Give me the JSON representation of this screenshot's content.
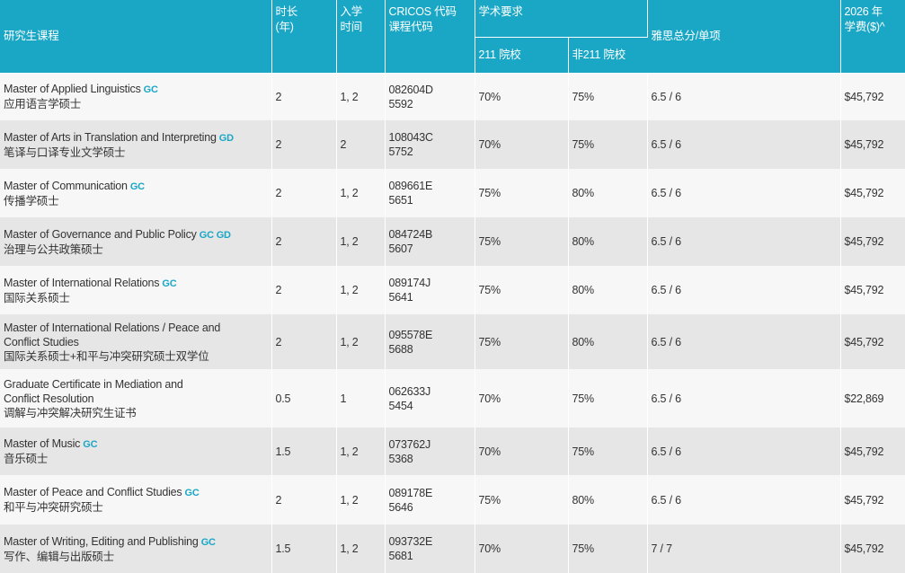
{
  "header": {
    "course": "研究生课程",
    "duration": [
      "时长",
      "(年)"
    ],
    "intake": [
      "入学",
      "时间"
    ],
    "cricos": [
      "CRICOS 代码",
      "课程代码"
    ],
    "academic": "学术要求",
    "col211": "211 院校",
    "colnon211": "非211 院校",
    "ielts": "雅思总分/单项",
    "fee": [
      "2026 年",
      "学费($)^"
    ]
  },
  "rows": [
    {
      "en": "Master of Applied Linguistics",
      "tags": "GC",
      "cn": "应用语言学硕士",
      "duration": "2",
      "intake": "1, 2",
      "cricos": "082604D",
      "code": "5592",
      "r211": "70%",
      "rnon211": "75%",
      "ielts": "6.5 / 6",
      "fee": "$45,792"
    },
    {
      "en": "Master of Arts in Translation and Interpreting",
      "tags": "GD",
      "cn": "笔译与口译专业文学硕士",
      "duration": "2",
      "intake": "2",
      "cricos": "108043C",
      "code": "5752",
      "r211": "70%",
      "rnon211": "75%",
      "ielts": "6.5 / 6",
      "fee": "$45,792"
    },
    {
      "en": "Master of Communication",
      "tags": "GC",
      "cn": "传播学硕士",
      "duration": "2",
      "intake": "1, 2",
      "cricos": "089661E",
      "code": "5651",
      "r211": "75%",
      "rnon211": "80%",
      "ielts": "6.5 / 6",
      "fee": "$45,792"
    },
    {
      "en": "Master of Governance and Public Policy",
      "tags": "GC GD",
      "cn": "治理与公共政策硕士",
      "duration": "2",
      "intake": "1, 2",
      "cricos": "084724B",
      "code": "5607",
      "r211": "75%",
      "rnon211": "80%",
      "ielts": "6.5 / 6",
      "fee": "$45,792"
    },
    {
      "en": "Master of International Relations",
      "tags": "GC",
      "cn": "国际关系硕士",
      "duration": "2",
      "intake": "1, 2",
      "cricos": "089174J",
      "code": "5641",
      "r211": "75%",
      "rnon211": "80%",
      "ielts": "6.5 / 6",
      "fee": "$45,792"
    },
    {
      "en1": "Master of International Relations / Peace and",
      "en2": "Conflict Studies",
      "tags": "",
      "cn": "国际关系硕士+和平与冲突研究硕士双学位",
      "duration": "2",
      "intake": "1, 2",
      "cricos": "095578E",
      "code": "5688",
      "r211": "75%",
      "rnon211": "80%",
      "ielts": "6.5 / 6",
      "fee": "$45,792"
    },
    {
      "en1": "Graduate Certificate in Mediation and",
      "en2": "Conflict Resolution",
      "tags": "",
      "cn": "调解与冲突解决研究生证书",
      "duration": "0.5",
      "intake": "1",
      "cricos": "062633J",
      "code": "5454",
      "r211": "70%",
      "rnon211": "75%",
      "ielts": "6.5 / 6",
      "fee": "$22,869"
    },
    {
      "en": "Master of Music",
      "tags": "GC",
      "cn": "音乐硕士",
      "duration": "1.5",
      "intake": "1, 2",
      "cricos": "073762J",
      "code": "5368",
      "r211": "70%",
      "rnon211": "75%",
      "ielts": "6.5 / 6",
      "fee": "$45,792"
    },
    {
      "en": "Master of Peace and Conflict Studies",
      "tags": "GC",
      "cn": "和平与冲突研究硕士",
      "duration": "2",
      "intake": "1, 2",
      "cricos": "089178E",
      "code": "5646",
      "r211": "75%",
      "rnon211": "80%",
      "ielts": "6.5 / 6",
      "fee": "$45,792"
    },
    {
      "en": "Master of Writing, Editing and Publishing",
      "tags": "GC",
      "cn": "写作、编辑与出版硕士",
      "duration": "1.5",
      "intake": "1, 2",
      "cricos": "093732E",
      "code": "5681",
      "r211": "70%",
      "rnon211": "75%",
      "ielts": "7 / 7",
      "fee": "$45,792"
    }
  ]
}
